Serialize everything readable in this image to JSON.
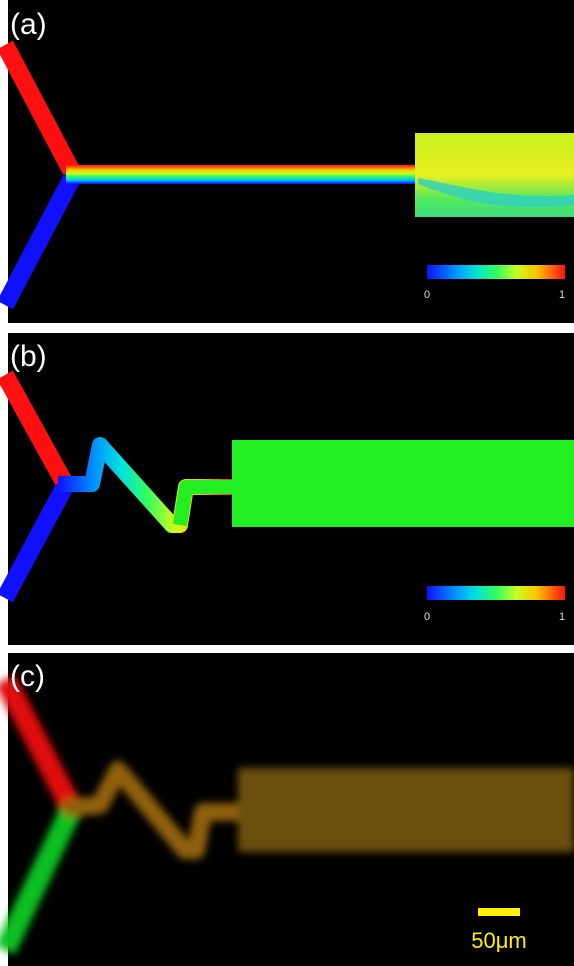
{
  "panels": [
    {
      "label": "(a)",
      "colorbar": {
        "min_label": "0",
        "max_label": "1"
      }
    },
    {
      "label": "(b)",
      "colorbar": {
        "min_label": "0",
        "max_label": "1"
      }
    },
    {
      "label": "(c)",
      "scale_bar": "50μm"
    }
  ]
}
